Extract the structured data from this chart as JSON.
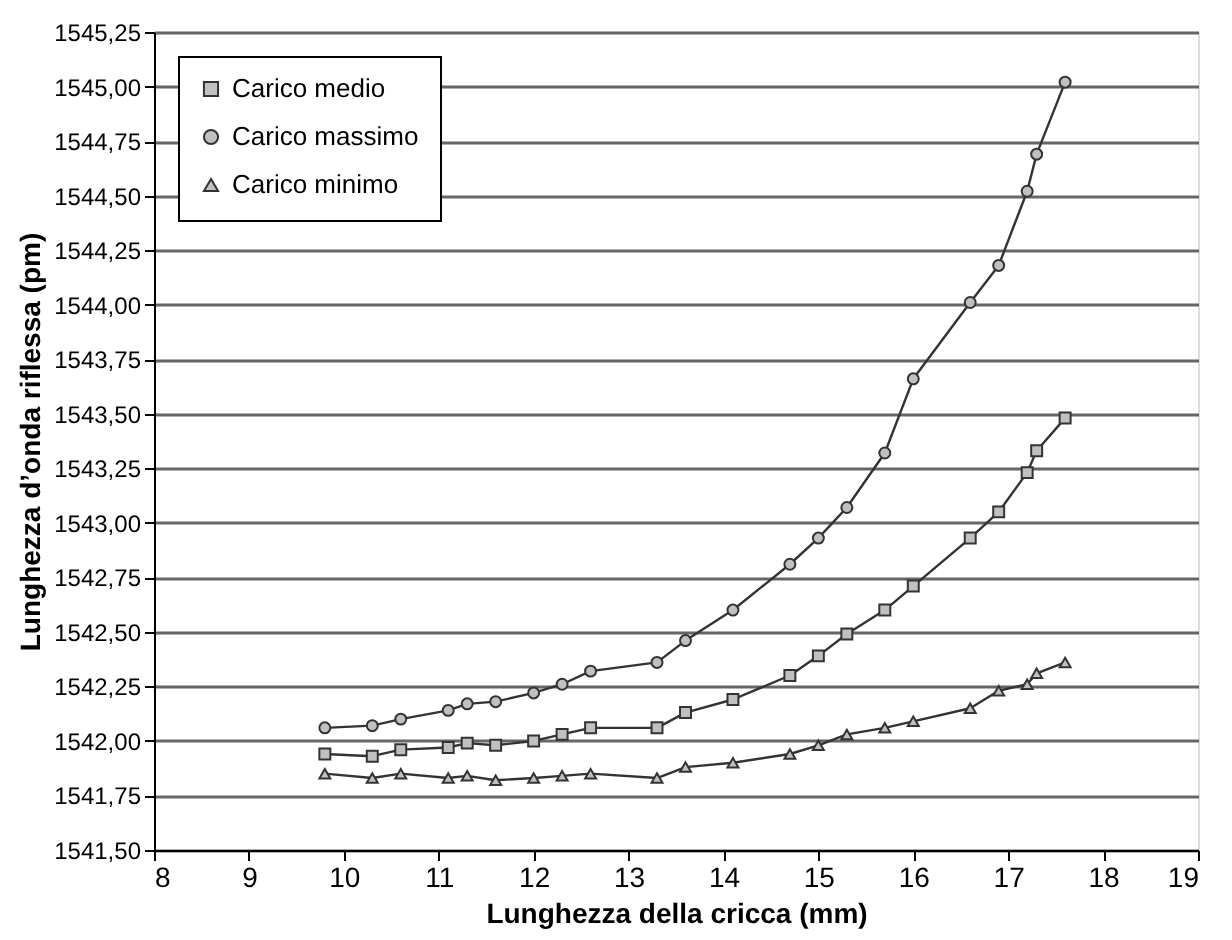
{
  "chart_data": {
    "type": "line",
    "xlabel": "Lunghezza della cricca (mm)",
    "ylabel": "Lunghezza d’onda riflessa (pm)",
    "x": [
      9.8,
      10.3,
      10.6,
      11.1,
      11.3,
      11.6,
      12.0,
      12.3,
      12.6,
      13.3,
      13.6,
      14.1,
      14.7,
      15.0,
      15.3,
      15.7,
      16.0,
      16.6,
      16.9,
      17.2,
      17.3,
      17.6
    ],
    "series": [
      {
        "name": "Carico medio",
        "color": "#333333",
        "marker": "square",
        "values": [
          1541.94,
          1541.93,
          1541.96,
          1541.97,
          1541.99,
          1541.98,
          1542.0,
          1542.03,
          1542.06,
          1542.06,
          1542.13,
          1542.19,
          1542.3,
          1542.39,
          1542.49,
          1542.6,
          1542.71,
          1542.93,
          1543.05,
          1543.23,
          1543.33,
          1543.48
        ]
      },
      {
        "name": "Carico massimo",
        "color": "#333333",
        "marker": "circle",
        "values": [
          1542.06,
          1542.07,
          1542.1,
          1542.14,
          1542.17,
          1542.18,
          1542.22,
          1542.26,
          1542.32,
          1542.36,
          1542.46,
          1542.6,
          1542.81,
          1542.93,
          1543.07,
          1543.32,
          1543.66,
          1544.01,
          1544.18,
          1544.52,
          1544.69,
          1545.02
        ]
      },
      {
        "name": "Carico minimo",
        "color": "#333333",
        "marker": "triangle",
        "values": [
          1541.85,
          1541.83,
          1541.85,
          1541.83,
          1541.84,
          1541.82,
          1541.83,
          1541.84,
          1541.85,
          1541.83,
          1541.88,
          1541.9,
          1541.94,
          1541.98,
          1542.03,
          1542.06,
          1542.09,
          1542.15,
          1542.23,
          1542.26,
          1542.31,
          1542.36
        ]
      }
    ],
    "xlim": [
      8,
      19
    ],
    "xticks": [
      8,
      9,
      10,
      11,
      12,
      13,
      14,
      15,
      16,
      17,
      18,
      19
    ],
    "ylim": [
      1541.5,
      1545.25
    ],
    "yticks": [
      {
        "value": 1541.5,
        "label": "1541,50"
      },
      {
        "value": 1541.75,
        "label": "1541,75"
      },
      {
        "value": 1542.0,
        "label": "1542,00"
      },
      {
        "value": 1542.25,
        "label": "1542,25"
      },
      {
        "value": 1542.5,
        "label": "1542,50"
      },
      {
        "value": 1542.75,
        "label": "1542,75"
      },
      {
        "value": 1543.0,
        "label": "1543,00"
      },
      {
        "value": 1543.25,
        "label": "1543,25"
      },
      {
        "value": 1543.5,
        "label": "1543,50"
      },
      {
        "value": 1543.75,
        "label": "1543,75"
      },
      {
        "value": 1544.0,
        "label": "1544,00"
      },
      {
        "value": 1544.25,
        "label": "1544,25"
      },
      {
        "value": 1544.5,
        "label": "1544,50"
      },
      {
        "value": 1544.75,
        "label": "1544,75"
      },
      {
        "value": 1545.0,
        "label": "1545,00"
      },
      {
        "value": 1545.25,
        "label": "1545,25"
      }
    ],
    "grid": "y",
    "legend": "top left",
    "line_style": "solid"
  }
}
